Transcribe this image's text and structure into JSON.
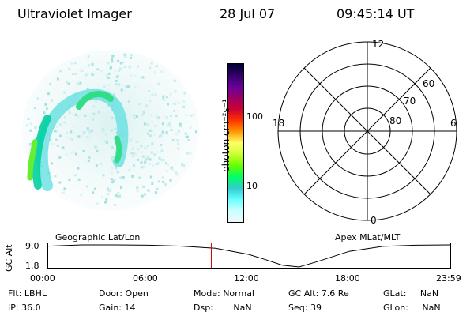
{
  "header": {
    "title": "Ultraviolet Imager",
    "date": "28 Jul 07",
    "time": "09:45:14 UT"
  },
  "colorbar": {
    "label": "photon cm⁻²s⁻¹",
    "tick_100": "100",
    "tick_10": "10",
    "scale": "log",
    "colors": [
      "#000033",
      "#330066",
      "#660099",
      "#990066",
      "#cc0033",
      "#ff3300",
      "#ff9900",
      "#ffff66",
      "#ccff33",
      "#66ff00",
      "#00ff66",
      "#33cccc",
      "#66ffff",
      "#ccffff",
      "#f0f8f8"
    ]
  },
  "polar_plot": {
    "clock_labels": {
      "top": "12",
      "left": "18",
      "right": "6",
      "bottom": "0"
    },
    "lat_labels": [
      "60",
      "70",
      "80"
    ]
  },
  "timeline": {
    "axis_title": "GC Alt",
    "y_ticks": [
      "9.0",
      "1.8"
    ],
    "left_label": "Geographic Lat/Lon",
    "right_label": "Apex MLat/MLT",
    "x_ticks": [
      "00:00",
      "06:00",
      "12:00",
      "18:00",
      "23:59"
    ],
    "current_time_hours": 9.754
  },
  "chart_data": {
    "type": "line",
    "title": "",
    "xlabel": "",
    "ylabel": "GC Alt",
    "x": [
      0,
      2,
      4,
      6,
      8,
      10,
      12,
      13,
      14,
      15,
      16,
      18,
      20,
      22,
      24
    ],
    "values": [
      8.6,
      9.0,
      9.0,
      8.9,
      8.6,
      7.9,
      5.9,
      4.2,
      2.4,
      1.8,
      3.4,
      6.9,
      8.5,
      8.9,
      9.0
    ],
    "xlim": [
      0,
      24
    ],
    "ylim": [
      1.8,
      9.0
    ]
  },
  "info": {
    "flt_label": "Flt:",
    "flt_value": "LBHL",
    "ip_label": "IP:",
    "ip_value": "36.0",
    "door_label": "Door:",
    "door_value": "Open",
    "gain_label": "Gain:",
    "gain_value": "14",
    "mode_label": "Mode:",
    "mode_value": "Normal",
    "dsp_label": "Dsp:",
    "dsp_value": "NaN",
    "gcalt_label": "GC Alt:",
    "gcalt_value": "7.6 Re",
    "seq_label": "Seq:",
    "seq_value": "39",
    "glat_label": "GLat:",
    "glat_value": "NaN",
    "glon_label": "GLon:",
    "glon_value": "NaN"
  }
}
